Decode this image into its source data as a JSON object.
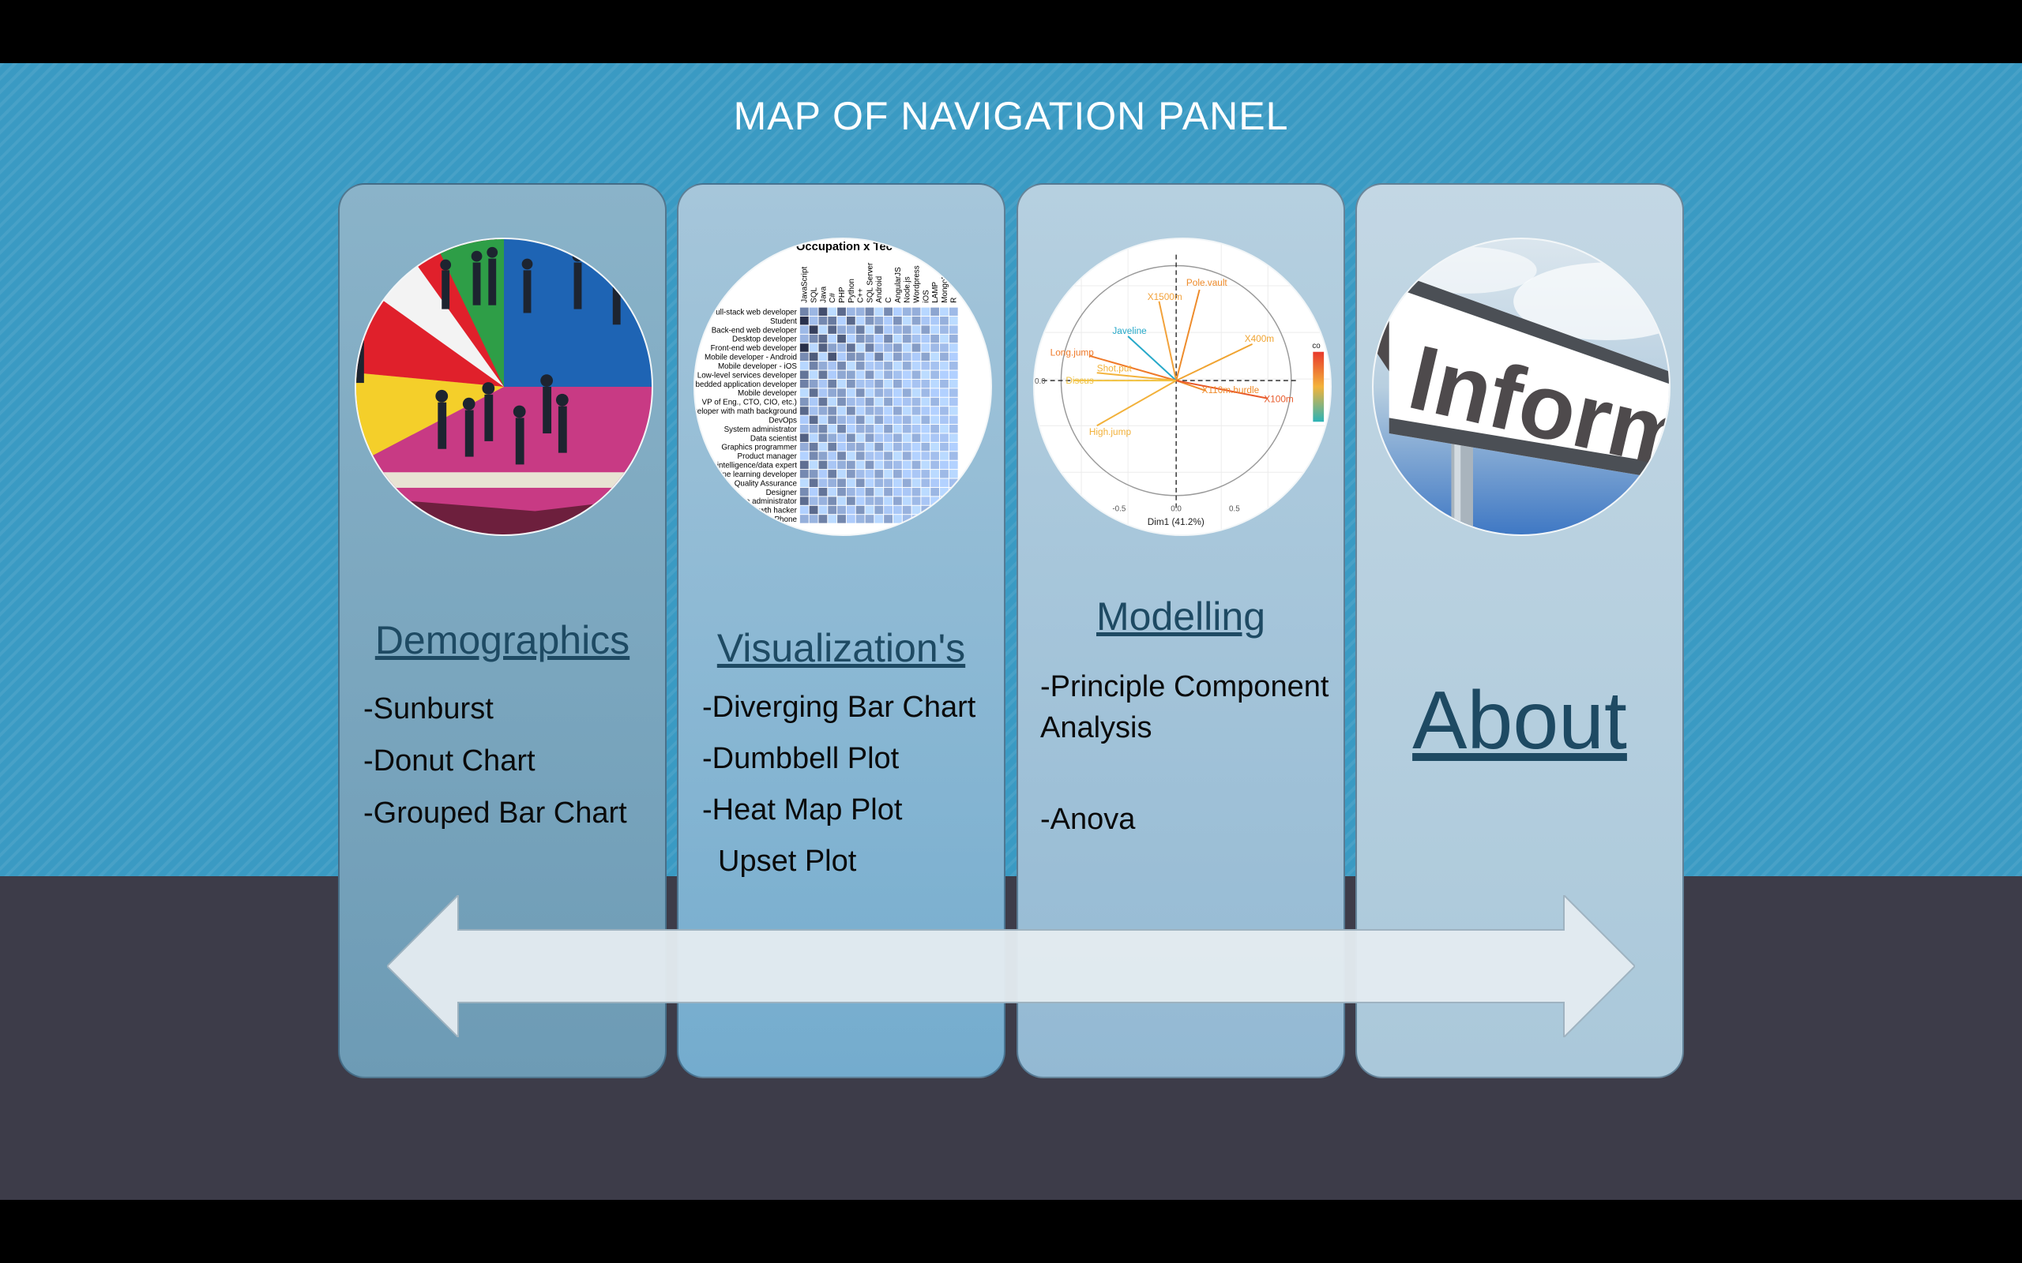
{
  "title": "MAP OF NAVIGATION PANEL",
  "cards": [
    {
      "heading": "Demographics",
      "image_icon": "pie-chart-people-image",
      "items": [
        "-Sunburst",
        "-Donut Chart",
        "-Grouped Bar Chart"
      ]
    },
    {
      "heading": "Visualization's",
      "image_icon": "heatmap-image",
      "image_text": {
        "title": "Occupation x Tec",
        "columns": [
          "JavaScript",
          "SQL",
          "Java",
          "C#",
          "PHP",
          "Python",
          "C++",
          "SQL Server",
          "Android",
          "C",
          "AngularJS",
          "Node.js",
          "Wordpress",
          "iOS",
          "LAMP",
          "MongoDB",
          "R"
        ],
        "rows": [
          "Full-stack web developer",
          "Student",
          "Back-end web developer",
          "Desktop developer",
          "Front-end web developer",
          "Mobile developer - Android",
          "Mobile developer - iOS",
          "Low-level services developer",
          "Embedded application developer",
          "Mobile developer",
          "VP of Eng., CTO, CIO, etc.)",
          "Developer with math background",
          "DevOps",
          "System administrator",
          "Data scientist",
          "Graphics programmer",
          "Product manager",
          "Business intelligence/data expert",
          "Machine learning developer",
          "Quality Assurance",
          "Designer",
          "Database administrator",
          "Growth hacker",
          "Windows Phone"
        ]
      },
      "items": [
        "-Diverging Bar Chart",
        "-Dumbbell Plot",
        "-Heat Map Plot",
        "Upset Plot"
      ]
    },
    {
      "heading": "Modelling",
      "image_icon": "pca-biplot-image",
      "image_text": {
        "vectors": [
          "Pole.vault",
          "X1500m",
          "Javeline",
          "X400m",
          "Long.jump",
          "Shot.put",
          "Discus",
          "X110m.hurdle",
          "X100m",
          "High.jump"
        ],
        "xlabel": "Dim1 (41.2%)",
        "legend": "co",
        "ticks": [
          "-0.5",
          "0.0",
          "0.5"
        ],
        "ytick": "0.0"
      },
      "items": [
        "-Principle Component Analysis",
        "-Anova"
      ]
    },
    {
      "heading": "About",
      "image_icon": "information-sign-image",
      "image_text": {
        "sign": "Informati"
      },
      "items": []
    }
  ],
  "colors": {
    "top_band": "#3a9ac3",
    "bottom_band": "#3d3c49",
    "heading": "#1e4a63",
    "arrow": "#e4ecf1"
  }
}
